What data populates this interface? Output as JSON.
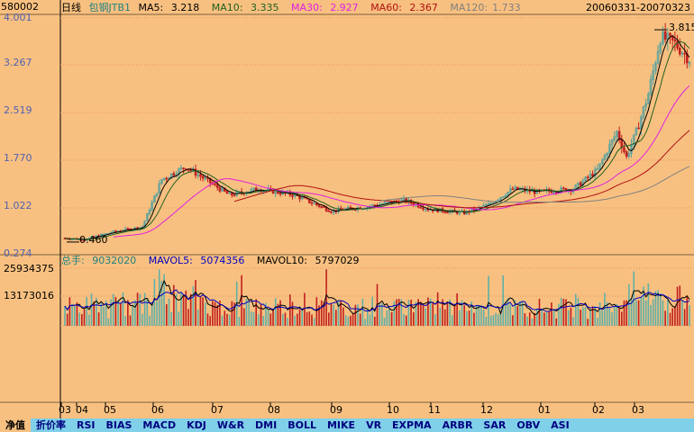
{
  "header": {
    "code": "580002",
    "period": "日线",
    "name": "包钢JTB1",
    "ma5_label": "MA5:",
    "ma5": "3.218",
    "ma10_label": "MA10:",
    "ma10": "3.335",
    "ma30_label": "MA30:",
    "ma30": "2.927",
    "ma60_label": "MA60:",
    "ma60": "2.367",
    "ma120_label": "MA120:",
    "ma120": "1.733",
    "date_range": "20060331-20070323"
  },
  "colors": {
    "bg": "#F8C080",
    "grid": "#E89060",
    "up": "#50A0A0",
    "down": "#C02020",
    "ma5": "#000000",
    "ma10": "#206020",
    "ma30": "#E020E0",
    "ma60": "#B01010",
    "ma120": "#808080",
    "vol_ma5": "#000000",
    "vol_ma10": "#0000C0"
  },
  "price_axis": {
    "ticks": [
      "4.001",
      "3.267",
      "2.519",
      "1.770",
      "1.022",
      "0.274"
    ]
  },
  "price_annotations": {
    "low": "0.460",
    "high": "3.815"
  },
  "volume": {
    "label": "总手:",
    "value": "9032020",
    "mavol5_label": "MAVOL5:",
    "mavol5": "5074356",
    "mavol10_label": "MAVOL10:",
    "mavol10": "5797029",
    "ticks": [
      "25934375",
      "13173016"
    ]
  },
  "x_axis": {
    "months": [
      "03",
      "04",
      "05",
      "06",
      "07",
      "08",
      "09",
      "10",
      "11",
      "12",
      "01",
      "02",
      "03"
    ]
  },
  "chart_data": {
    "type": "candlestick",
    "y_range": [
      0.274,
      4.001
    ],
    "volume_max": 25934375,
    "bars": 240,
    "ma5_recent": 3.218,
    "ma10_recent": 3.335,
    "ma30_recent": 2.927,
    "ma60_recent": 2.367,
    "ma120_recent": 1.733,
    "low": 0.46,
    "high": 3.815
  },
  "tabs": [
    "净值",
    "折价率",
    "RSI",
    "BIAS",
    "MACD",
    "KDJ",
    "W&R",
    "DMI",
    "BOLL",
    "MIKE",
    "VR",
    "EXPMA",
    "ARBR",
    "SAR",
    "OBV",
    "ASI"
  ]
}
